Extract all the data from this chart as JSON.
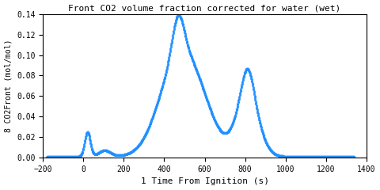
{
  "title": "Front CO2 volume fraction corrected for water (wet)",
  "xlabel": "1 Time From Ignition (s)",
  "ylabel": "8 CO2Front (mol/mol)",
  "xlim": [
    -200,
    1400
  ],
  "ylim": [
    0,
    0.14
  ],
  "xticks": [
    -200,
    0,
    200,
    400,
    600,
    800,
    1000,
    1200,
    1400
  ],
  "yticks": [
    0,
    0.02,
    0.04,
    0.06,
    0.08,
    0.1,
    0.12,
    0.14
  ],
  "marker": "*",
  "marker_color": "#1e90ff",
  "marker_size": 2.5,
  "bg_color": "#ffffff",
  "title_fontsize": 8,
  "label_fontsize": 8,
  "tick_fontsize": 7
}
